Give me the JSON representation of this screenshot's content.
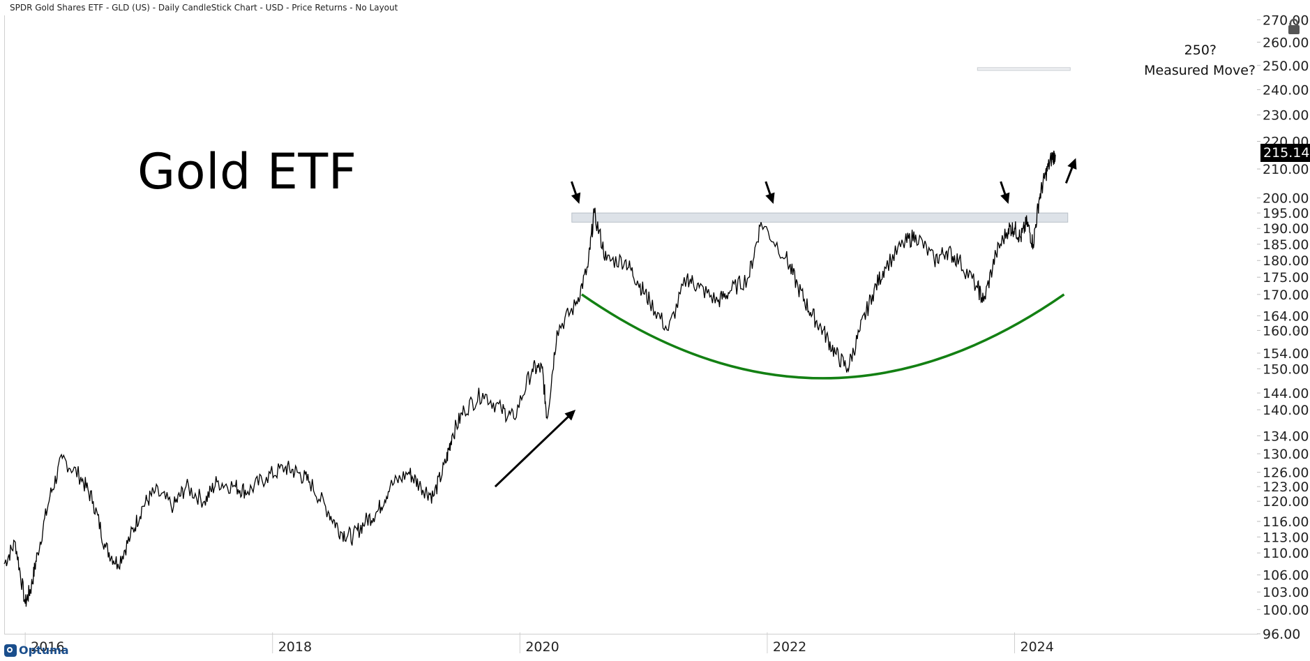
{
  "header": {
    "title": "SPDR Gold Shares ETF - GLD (US) - Daily CandleStick Chart - USD - Price Returns - No Layout"
  },
  "annotation": {
    "title": "Gold ETF",
    "note_line1": "250?",
    "note_line2": "Measured Move?"
  },
  "last_price": "215.14",
  "logo_text": "Optuma",
  "colors": {
    "price_line": "#000000",
    "resistance_band": "#dde2e8",
    "resistance_border": "#b9c0c8",
    "base_curve": "#138013",
    "target_line": "#c9cdd2",
    "axis_text": "#222222"
  },
  "chart_data": {
    "type": "line",
    "title": "SPDR Gold Shares ETF - GLD (US) - Daily CandleStick Chart - USD - Price Returns - No Layout",
    "y_scale": "log",
    "ylim": [
      96,
      272
    ],
    "xlim": [
      2015.83,
      2025.96
    ],
    "x_ticks": [
      "2016",
      "2018",
      "2020",
      "2022",
      "2024"
    ],
    "y_ticks": [
      "270.00",
      "260.00",
      "250.00",
      "240.00",
      "230.00",
      "220.00",
      "210.00",
      "200.00",
      "195.00",
      "190.00",
      "185.00",
      "180.00",
      "175.00",
      "170.00",
      "164.00",
      "160.00",
      "154.00",
      "150.00",
      "144.00",
      "140.00",
      "134.00",
      "130.00",
      "126.00",
      "123.00",
      "120.00",
      "116.00",
      "113.00",
      "110.00",
      "106.00",
      "103.00",
      "100.00",
      "96.00"
    ],
    "series": [
      {
        "x": [
          2015.83,
          2015.92,
          2016.0,
          2016.05,
          2016.1,
          2016.2,
          2016.3,
          2016.45,
          2016.55,
          2016.65,
          2016.75,
          2016.85,
          2016.95,
          2017.05,
          2017.2,
          2017.3,
          2017.45,
          2017.55,
          2017.7,
          2017.8,
          2017.95,
          2018.1,
          2018.2,
          2018.3,
          2018.45,
          2018.55,
          2018.65,
          2018.75,
          2018.85,
          2018.95,
          2019.1,
          2019.2,
          2019.3,
          2019.4,
          2019.45,
          2019.55,
          2019.7,
          2019.85,
          2019.95,
          2020.1,
          2020.18,
          2020.22,
          2020.3,
          2020.45,
          2020.55,
          2020.6,
          2020.7,
          2020.85,
          2020.95,
          2021.05,
          2021.2,
          2021.35,
          2021.45,
          2021.6,
          2021.7,
          2021.85,
          2021.95,
          2022.15,
          2022.25,
          2022.35,
          2022.45,
          2022.55,
          2022.65,
          2022.75,
          2022.85,
          2022.95,
          2023.1,
          2023.2,
          2023.35,
          2023.45,
          2023.55,
          2023.7,
          2023.75,
          2023.85,
          2023.95,
          2024.0,
          2024.05,
          2024.1,
          2024.15,
          2024.2,
          2024.25,
          2024.3,
          2024.33
        ],
        "y": [
          108,
          112,
          101,
          104,
          110,
          121,
          129,
          125,
          120,
          111,
          108,
          113,
          119,
          122,
          119,
          123,
          120,
          124,
          123,
          122,
          125,
          127,
          126,
          124,
          118,
          114,
          113,
          116,
          118,
          123,
          126,
          123,
          121,
          128,
          134,
          140,
          144,
          140,
          138,
          150,
          150,
          138,
          160,
          167,
          178,
          195,
          180,
          180,
          174,
          168,
          160,
          175,
          172,
          168,
          171,
          175,
          192,
          181,
          172,
          165,
          160,
          154,
          150,
          160,
          170,
          178,
          185,
          188,
          180,
          183,
          180,
          172,
          168,
          182,
          190,
          190,
          187,
          192,
          185,
          200,
          208,
          214,
          215.14
        ]
      }
    ],
    "annotations": [
      {
        "type": "resistance_band",
        "y_range": [
          192,
          195
        ],
        "x_range": [
          2020.42,
          2024.43
        ]
      },
      {
        "type": "base_curve",
        "x_range": [
          2020.5,
          2024.4
        ],
        "y_bottom": 148.5,
        "y_ends": 170
      },
      {
        "type": "target_line",
        "y": 248.5,
        "x_range": [
          2023.7,
          2024.45
        ]
      },
      {
        "type": "arrow_up",
        "from": [
          2019.8,
          123
        ],
        "to": [
          2020.45,
          140
        ]
      },
      {
        "type": "arrow_down",
        "at": [
          2020.48,
          198
        ]
      },
      {
        "type": "arrow_down",
        "at": [
          2022.05,
          198
        ]
      },
      {
        "type": "arrow_down",
        "at": [
          2023.95,
          198
        ]
      },
      {
        "type": "arrow_up_small",
        "at": [
          2024.45,
          206
        ]
      }
    ]
  }
}
